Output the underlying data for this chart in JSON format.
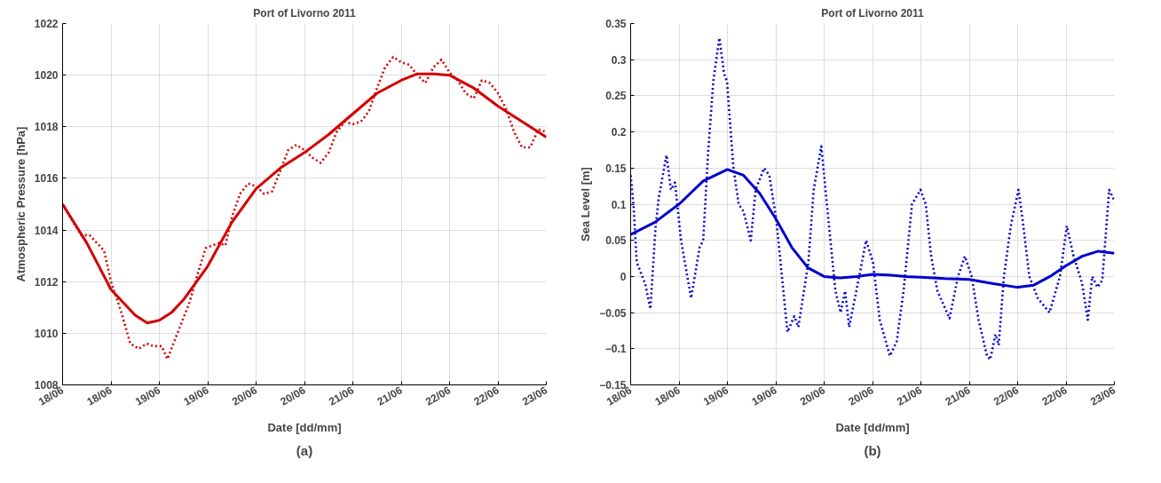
{
  "chart_data": [
    {
      "type": "line",
      "title": "Port of Livorno 2011",
      "xlabel": "Date [dd/mm]",
      "ylabel": "Atmospheric Pressure [hPa]",
      "annotations": [
        "(a)"
      ],
      "grid": true,
      "xlim": [
        "2011-06-18T00:00",
        "2011-06-23T00:00"
      ],
      "xticks": [
        {
          "value": "2011-06-18T00:00",
          "label": "18/06"
        },
        {
          "value": "2011-06-18T12:00",
          "label": "18/06"
        },
        {
          "value": "2011-06-19T00:00",
          "label": "19/06"
        },
        {
          "value": "2011-06-19T12:00",
          "label": "19/06"
        },
        {
          "value": "2011-06-20T00:00",
          "label": "20/06"
        },
        {
          "value": "2011-06-20T12:00",
          "label": "20/06"
        },
        {
          "value": "2011-06-21T00:00",
          "label": "21/06"
        },
        {
          "value": "2011-06-21T12:00",
          "label": "21/06"
        },
        {
          "value": "2011-06-22T00:00",
          "label": "22/06"
        },
        {
          "value": "2011-06-22T12:00",
          "label": "22/06"
        },
        {
          "value": "2011-06-23T00:00",
          "label": "23/06"
        }
      ],
      "ylim": [
        1008,
        1022
      ],
      "yticks": [
        1008,
        1010,
        1012,
        1014,
        1016,
        1018,
        1020,
        1022
      ],
      "series": [
        {
          "color": "#d40000",
          "line_style": "dotted",
          "x": [
            "2011-06-18T00:00",
            "2011-06-18T04:36",
            "2011-06-18T06:42",
            "2011-06-18T10:18",
            "2011-06-18T12:00",
            "2011-06-18T14:24",
            "2011-06-18T16:48",
            "2011-06-18T18:54",
            "2011-06-18T20:54",
            "2011-06-18T22:30",
            "2011-06-19T00:36",
            "2011-06-19T02:00",
            "2011-06-19T04:00",
            "2011-06-19T07:30",
            "2011-06-19T09:54",
            "2011-06-19T11:30",
            "2011-06-19T14:48",
            "2011-06-19T16:24",
            "2011-06-19T18:00",
            "2011-06-19T20:00",
            "2011-06-19T22:00",
            "2011-06-20T00:00",
            "2011-06-20T02:00",
            "2011-06-20T04:00",
            "2011-06-20T06:00",
            "2011-06-20T08:00",
            "2011-06-20T10:00",
            "2011-06-20T12:00",
            "2011-06-20T14:00",
            "2011-06-20T16:00",
            "2011-06-20T18:00",
            "2011-06-20T20:00",
            "2011-06-20T22:00",
            "2011-06-21T00:00",
            "2011-06-21T02:00",
            "2011-06-21T04:00",
            "2011-06-21T06:00",
            "2011-06-21T08:00",
            "2011-06-21T10:00",
            "2011-06-21T12:00",
            "2011-06-21T14:00",
            "2011-06-21T16:00",
            "2011-06-21T18:00",
            "2011-06-21T20:00",
            "2011-06-21T22:00",
            "2011-06-22T00:00",
            "2011-06-22T02:00",
            "2011-06-22T04:00",
            "2011-06-22T06:00",
            "2011-06-22T08:00",
            "2011-06-22T10:00",
            "2011-06-22T12:00",
            "2011-06-22T14:00",
            "2011-06-22T16:00",
            "2011-06-22T18:00",
            "2011-06-22T20:00",
            "2011-06-22T22:00",
            "2011-06-23T00:00"
          ],
          "values": [
            1015,
            1013.8,
            1013.8,
            1013.2,
            1012.0,
            1010.9,
            1009.6,
            1009.4,
            1009.6,
            1009.5,
            1009.5,
            1009.0,
            1009.8,
            1011.2,
            1012.5,
            1013.3,
            1013.5,
            1013.4,
            1014.5,
            1015.4,
            1015.8,
            1015.7,
            1015.4,
            1015.5,
            1016.3,
            1017.1,
            1017.3,
            1017.1,
            1016.8,
            1016.6,
            1017.0,
            1017.8,
            1018.2,
            1018.1,
            1018.2,
            1018.6,
            1019.5,
            1020.3,
            1020.7,
            1020.5,
            1020.4,
            1020.0,
            1019.7,
            1020.3,
            1020.6,
            1020.1,
            1019.8,
            1019.3,
            1019.1,
            1019.8,
            1019.7,
            1019.3,
            1018.7,
            1017.8,
            1017.2,
            1017.2,
            1017.9,
            1017.8
          ]
        },
        {
          "color": "#d40000",
          "line_style": "solid",
          "x": [
            "2011-06-18T00:00",
            "2011-06-18T06:00",
            "2011-06-18T12:00",
            "2011-06-18T18:00",
            "2011-06-18T21:00",
            "2011-06-19T00:00",
            "2011-06-19T03:00",
            "2011-06-19T06:00",
            "2011-06-19T12:00",
            "2011-06-19T18:00",
            "2011-06-20T00:00",
            "2011-06-20T06:00",
            "2011-06-20T12:00",
            "2011-06-20T18:00",
            "2011-06-21T00:00",
            "2011-06-21T06:00",
            "2011-06-21T12:00",
            "2011-06-21T16:00",
            "2011-06-21T20:00",
            "2011-06-22T00:00",
            "2011-06-22T06:00",
            "2011-06-22T12:00",
            "2011-06-22T18:00",
            "2011-06-23T00:00"
          ],
          "values": [
            1015,
            1013.5,
            1011.7,
            1010.7,
            1010.4,
            1010.5,
            1010.8,
            1011.3,
            1012.6,
            1014.3,
            1015.6,
            1016.4,
            1017.0,
            1017.7,
            1018.5,
            1019.3,
            1019.8,
            1020.05,
            1020.05,
            1020.0,
            1019.5,
            1018.8,
            1018.2,
            1017.6
          ]
        }
      ]
    },
    {
      "type": "line",
      "title": "Port of Livorno 2011",
      "xlabel": "Date [dd/mm]",
      "ylabel": "Sea Level [m]",
      "annotations": [
        "(b)"
      ],
      "grid": true,
      "xlim": [
        "2011-06-18T00:00",
        "2011-06-23T00:00"
      ],
      "xticks": [
        {
          "value": "2011-06-18T00:00",
          "label": "18/06"
        },
        {
          "value": "2011-06-18T12:00",
          "label": "18/06"
        },
        {
          "value": "2011-06-19T00:00",
          "label": "19/06"
        },
        {
          "value": "2011-06-19T12:00",
          "label": "19/06"
        },
        {
          "value": "2011-06-20T00:00",
          "label": "20/06"
        },
        {
          "value": "2011-06-20T12:00",
          "label": "20/06"
        },
        {
          "value": "2011-06-21T00:00",
          "label": "21/06"
        },
        {
          "value": "2011-06-21T12:00",
          "label": "21/06"
        },
        {
          "value": "2011-06-22T00:00",
          "label": "22/06"
        },
        {
          "value": "2011-06-22T12:00",
          "label": "22/06"
        },
        {
          "value": "2011-06-23T00:00",
          "label": "23/06"
        }
      ],
      "ylim": [
        -0.15,
        0.35
      ],
      "yticks": [
        {
          "value": -0.15,
          "label": "−0.15"
        },
        {
          "value": -0.1,
          "label": "−0.1"
        },
        {
          "value": -0.05,
          "label": "−0.05"
        },
        0,
        0.05,
        0.1,
        0.15,
        0.2,
        0.25,
        0.3,
        0.35
      ],
      "series": [
        {
          "color": "#0000cc",
          "line_style": "dotted",
          "x": [
            "2011-06-18T00:00",
            "2011-06-18T00:42",
            "2011-06-18T01:30",
            "2011-06-18T03:36",
            "2011-06-18T04:54",
            "2011-06-18T06:12",
            "2011-06-18T07:00",
            "2011-06-18T08:54",
            "2011-06-18T10:00",
            "2011-06-18T11:00",
            "2011-06-18T12:30",
            "2011-06-18T15:00",
            "2011-06-18T17:06",
            "2011-06-18T18:00",
            "2011-06-18T19:12",
            "2011-06-18T20:30",
            "2011-06-18T22:00",
            "2011-06-18T23:12",
            "2011-06-18T23:54",
            "2011-06-19T01:30",
            "2011-06-19T02:48",
            "2011-06-19T04:00",
            "2011-06-19T05:48",
            "2011-06-19T07:00",
            "2011-06-19T09:06",
            "2011-06-19T10:24",
            "2011-06-19T12:06",
            "2011-06-19T14:54",
            "2011-06-19T16:36",
            "2011-06-19T17:36",
            "2011-06-19T20:06",
            "2011-06-19T21:24",
            "2011-06-19T23:18",
            "2011-06-20T01:12",
            "2011-06-20T02:48",
            "2011-06-20T04:06",
            "2011-06-20T05:12",
            "2011-06-20T06:12",
            "2011-06-20T08:42",
            "2011-06-20T10:24",
            "2011-06-20T12:06",
            "2011-06-20T13:48",
            "2011-06-20T16:18",
            "2011-06-20T18:00",
            "2011-06-20T19:42",
            "2011-06-20T21:48",
            "2011-06-20T23:54",
            "2011-06-21T01:12",
            "2011-06-21T02:30",
            "2011-06-21T04:06",
            "2011-06-21T07:06",
            "2011-06-21T09:12",
            "2011-06-21T10:54",
            "2011-06-21T12:36",
            "2011-06-21T14:18",
            "2011-06-21T16:24",
            "2011-06-21T17:12",
            "2011-06-21T18:30",
            "2011-06-21T19:18",
            "2011-06-21T20:36",
            "2011-06-21T22:18",
            "2011-06-22T00:12",
            "2011-06-22T01:12",
            "2011-06-22T02:54",
            "2011-06-22T05:00",
            "2011-06-22T07:54",
            "2011-06-22T10:30",
            "2011-06-22T12:12",
            "2011-06-22T13:48",
            "2011-06-22T16:00",
            "2011-06-22T17:24",
            "2011-06-22T18:30",
            "2011-06-22T19:48",
            "2011-06-22T21:00",
            "2011-06-22T22:42",
            "2011-06-23T00:00"
          ],
          "values": [
            0.14,
            0.1,
            0.02,
            -0.01,
            -0.045,
            0.07,
            0.11,
            0.168,
            0.12,
            0.13,
            0.05,
            -0.03,
            0.04,
            0.05,
            0.17,
            0.27,
            0.33,
            0.28,
            0.27,
            0.15,
            0.1,
            0.09,
            0.05,
            0.12,
            0.15,
            0.14,
            0.08,
            -0.077,
            -0.055,
            -0.07,
            0.02,
            0.12,
            0.18,
            0.07,
            -0.02,
            -0.05,
            -0.02,
            -0.07,
            0.0,
            0.05,
            0.02,
            -0.06,
            -0.11,
            -0.09,
            -0.02,
            0.1,
            0.12,
            0.1,
            0.03,
            -0.02,
            -0.058,
            0.0,
            0.028,
            0.0,
            -0.06,
            -0.11,
            -0.115,
            -0.08,
            -0.095,
            0.0,
            0.07,
            0.12,
            0.08,
            0.0,
            -0.03,
            -0.05,
            0.0,
            0.07,
            0.03,
            -0.01,
            -0.06,
            0.0,
            -0.015,
            -0.005,
            0.12,
            0.105
          ]
        },
        {
          "color": "#0000cc",
          "line_style": "solid",
          "x": [
            "2011-06-18T00:00",
            "2011-06-18T06:00",
            "2011-06-18T12:00",
            "2011-06-18T18:00",
            "2011-06-19T00:00",
            "2011-06-19T04:00",
            "2011-06-19T08:00",
            "2011-06-19T12:00",
            "2011-06-19T16:00",
            "2011-06-19T20:00",
            "2011-06-20T00:00",
            "2011-06-20T04:00",
            "2011-06-20T08:00",
            "2011-06-20T12:00",
            "2011-06-20T16:00",
            "2011-06-20T20:00",
            "2011-06-21T00:00",
            "2011-06-21T06:00",
            "2011-06-21T12:00",
            "2011-06-21T18:00",
            "2011-06-22T00:00",
            "2011-06-22T04:00",
            "2011-06-22T08:00",
            "2011-06-22T12:00",
            "2011-06-22T16:00",
            "2011-06-22T20:00",
            "2011-06-23T00:00"
          ],
          "values": [
            0.058,
            0.075,
            0.1,
            0.132,
            0.148,
            0.14,
            0.115,
            0.08,
            0.04,
            0.012,
            0.0,
            -0.002,
            0.0,
            0.003,
            0.002,
            0.0,
            -0.001,
            -0.003,
            -0.004,
            -0.01,
            -0.015,
            -0.012,
            0.0,
            0.015,
            0.028,
            0.035,
            0.032
          ]
        }
      ]
    }
  ]
}
